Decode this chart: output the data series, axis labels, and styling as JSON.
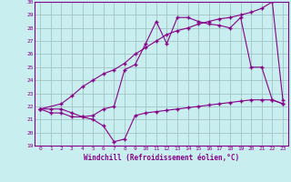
{
  "xlabel": "Windchill (Refroidissement éolien,°C)",
  "bg_color": "#c8eef0",
  "line_color": "#880088",
  "grid_color": "#99bbbb",
  "xlim": [
    -0.5,
    23.5
  ],
  "ylim": [
    19,
    30
  ],
  "xticks": [
    0,
    1,
    2,
    3,
    4,
    5,
    6,
    7,
    8,
    9,
    10,
    11,
    12,
    13,
    14,
    15,
    16,
    17,
    18,
    19,
    20,
    21,
    22,
    23
  ],
  "yticks": [
    19,
    20,
    21,
    22,
    23,
    24,
    25,
    26,
    27,
    28,
    29,
    30
  ],
  "line1_x": [
    0,
    1,
    2,
    3,
    4,
    5,
    6,
    7,
    8,
    9,
    10,
    11,
    12,
    13,
    14,
    15,
    16,
    17,
    18,
    19,
    20,
    21,
    22,
    23
  ],
  "line1_y": [
    21.8,
    21.5,
    21.5,
    21.2,
    21.2,
    21.0,
    20.5,
    19.3,
    19.5,
    21.3,
    21.5,
    21.6,
    21.7,
    21.8,
    21.9,
    22.0,
    22.1,
    22.2,
    22.3,
    22.4,
    22.5,
    22.5,
    22.5,
    22.2
  ],
  "line2_x": [
    0,
    2,
    3,
    4,
    5,
    6,
    7,
    8,
    9,
    10,
    11,
    12,
    13,
    14,
    15,
    16,
    17,
    18,
    19,
    20,
    21,
    22,
    23
  ],
  "line2_y": [
    21.8,
    22.2,
    22.8,
    23.5,
    24.0,
    24.5,
    24.8,
    25.3,
    26.0,
    26.5,
    27.0,
    27.5,
    27.8,
    28.0,
    28.3,
    28.5,
    28.7,
    28.8,
    29.0,
    29.2,
    29.5,
    30.0,
    22.5
  ],
  "line3_x": [
    0,
    1,
    2,
    3,
    4,
    5,
    6,
    7,
    8,
    9,
    10,
    11,
    12,
    13,
    14,
    15,
    16,
    17,
    18,
    19,
    20,
    21,
    22,
    23
  ],
  "line3_y": [
    21.8,
    21.8,
    21.8,
    21.5,
    21.2,
    21.3,
    21.8,
    22.0,
    24.8,
    25.2,
    26.8,
    28.5,
    26.8,
    28.8,
    28.8,
    28.5,
    28.3,
    28.2,
    28.0,
    28.8,
    25.0,
    25.0,
    22.5,
    22.2
  ]
}
